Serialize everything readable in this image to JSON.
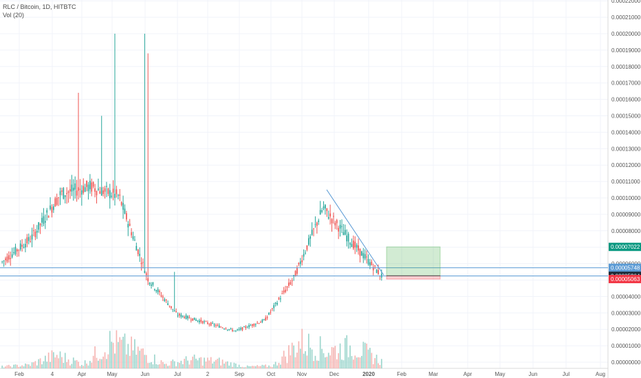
{
  "chart_data": {
    "type": "candlestick",
    "title": "RLC / Bitcoin, 1D, HITBTC",
    "indicator_label": "Vol (20)",
    "y_ticks": [
      "0.00000000",
      "0.00001000",
      "0.00002000",
      "0.00003000",
      "0.00004000",
      "0.00005000",
      "0.00006000",
      "0.00007000",
      "0.00008000",
      "0.00009000",
      "0.00010000",
      "0.00011000",
      "0.00012000",
      "0.00013000",
      "0.00014000",
      "0.00015000",
      "0.00016000",
      "0.00017000",
      "0.00018000",
      "0.00019000",
      "0.00020000",
      "0.00021000",
      "0.00022000"
    ],
    "ylim": [
      0,
      0.000225
    ],
    "x_ticks": [
      "Feb",
      "4",
      "Apr",
      "May",
      "Jun",
      "Jul",
      "2",
      "Sep",
      "Oct",
      "Nov",
      "Dec",
      "2020",
      "Feb",
      "Mar",
      "Apr",
      "May",
      "Jun",
      "Jul",
      "Aug"
    ],
    "x_bold_tick": "2020",
    "grid": true,
    "price_badges": [
      {
        "label": "0.00007022",
        "value": 7.02e-05,
        "color": "#089981"
      },
      {
        "label": "0.00005748",
        "value": 5.75e-05,
        "color": "#5b9bd5"
      },
      {
        "label": "0.00005264",
        "value": 5.26e-05,
        "color": "#1e2a36"
      },
      {
        "label": "0.00005063",
        "value": 5.06e-05,
        "color": "#f23645"
      }
    ],
    "horizontal_lines": [
      5.75e-05,
      5.25e-05
    ],
    "trendline": {
      "start_x": "Nov",
      "start_y": 0.000105,
      "end_x": "Jan 2020",
      "end_y": 5.3e-05
    },
    "position_box": {
      "entry": 5.26e-05,
      "target": 7.02e-05,
      "stop": 5.06e-05
    },
    "ohlc_anchors": [
      [
        5.6e-05,
        6.6e-05
      ],
      [
        7.3e-05,
        7.8e-05
      ],
      [
        9.5e-05,
        0.00011
      ],
      [
        0.000102,
        0.000112
      ],
      [
        9.2e-05,
        0.00011
      ],
      [
        5.3e-05,
        4.8e-05
      ],
      [
        2.8e-05,
        3e-05
      ],
      [
        2.5e-05,
        2.3e-05
      ],
      [
        2e-05,
        1.8e-05
      ],
      [
        2.3e-05,
        2.8e-05
      ],
      [
        4.5e-05,
        5.8e-05
      ],
      [
        8.5e-05,
        0.000103
      ],
      [
        8.5e-05,
        6e-05
      ],
      [
        5.3e-05,
        5.2e-05
      ]
    ],
    "volume_profile": [
      0.02,
      0.04,
      0.15,
      0.05,
      0.3,
      0.2,
      0.05,
      0.1,
      0.08,
      0.02,
      0.03,
      0.3,
      0.2,
      0.25,
      0.08
    ]
  }
}
